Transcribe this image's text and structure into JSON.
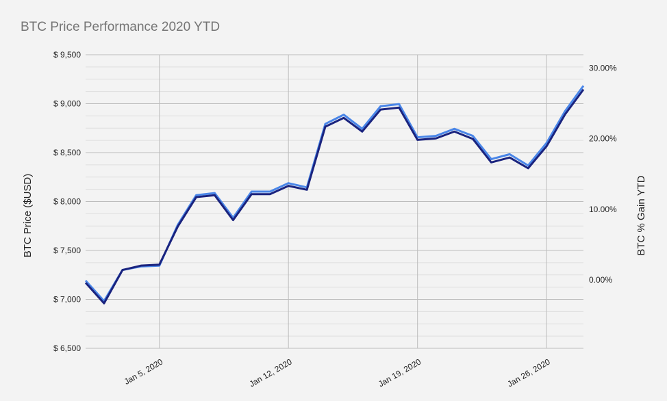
{
  "chart": {
    "title": "BTC Price Performance 2020 YTD",
    "y_left_label": "BTC Price ($USD)",
    "y_right_label": "BTC % Gain YTD",
    "y_left_ticks": [
      "$ 9,500",
      "$ 9,000",
      "$ 8,500",
      "$ 8,000",
      "$ 7,500",
      "$ 7,000",
      "$ 6,500"
    ],
    "y_right_ticks": [
      "30.00%",
      "20.00%",
      "10.00%",
      "0.00%"
    ],
    "x_ticks": [
      "Jan 5, 2020",
      "Jan 12, 2020",
      "Jan 19, 2020",
      "Jan 26, 2020"
    ],
    "colors": {
      "price": "#1a237e",
      "gain": "#4a86e8",
      "grid": "#d9d9d9",
      "major_grid": "#bdbdbd"
    }
  },
  "chart_data": {
    "type": "line",
    "title": "BTC Price Performance 2020 YTD",
    "xlabel": "",
    "ylabel": "BTC Price ($USD)",
    "ylabel_right": "BTC % Gain YTD",
    "ylim": [
      6500,
      9500
    ],
    "ylim_right": [
      -9.7,
      31.9
    ],
    "x": [
      "Jan 1",
      "Jan 2",
      "Jan 3",
      "Jan 4",
      "Jan 5",
      "Jan 6",
      "Jan 7",
      "Jan 8",
      "Jan 9",
      "Jan 10",
      "Jan 11",
      "Jan 12",
      "Jan 13",
      "Jan 14",
      "Jan 15",
      "Jan 16",
      "Jan 17",
      "Jan 18",
      "Jan 19",
      "Jan 20",
      "Jan 21",
      "Jan 22",
      "Jan 23",
      "Jan 24",
      "Jan 25",
      "Jan 26",
      "Jan 27",
      "Jan 28"
    ],
    "x_tick_labels": [
      "Jan 5, 2020",
      "Jan 12, 2020",
      "Jan 19, 2020",
      "Jan 26, 2020"
    ],
    "grid": true,
    "legend": "none",
    "series": [
      {
        "name": "BTC Price ($USD)",
        "axis": "left",
        "values": [
          7170,
          6960,
          7300,
          7345,
          7355,
          7745,
          8045,
          8065,
          7810,
          8075,
          8075,
          8160,
          8120,
          8765,
          8855,
          8715,
          8940,
          8960,
          8630,
          8645,
          8715,
          8640,
          8400,
          8450,
          8340,
          8565,
          8890,
          9145
        ]
      },
      {
        "name": "BTC % Gain YTD",
        "axis": "right",
        "values": [
          0.0,
          -2.9,
          1.5,
          2.0,
          2.1,
          7.9,
          12.1,
          12.4,
          8.9,
          12.6,
          12.6,
          13.8,
          13.2,
          22.2,
          23.5,
          21.5,
          24.7,
          25.0,
          20.3,
          20.5,
          21.5,
          20.5,
          17.2,
          17.9,
          16.3,
          19.5,
          24.0,
          27.6
        ]
      }
    ]
  }
}
